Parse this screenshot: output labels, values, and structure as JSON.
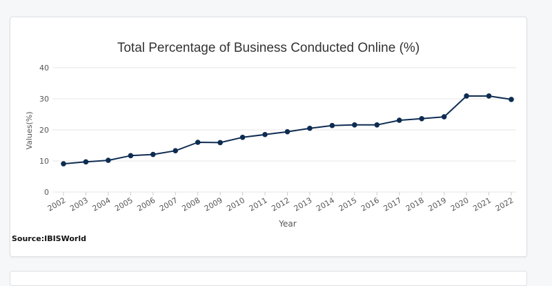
{
  "chart_data": {
    "type": "line",
    "title": "Total Percentage of Business Conducted Online (%)",
    "xlabel": "Year",
    "ylabel": "Values(%)",
    "categories": [
      "2002",
      "2003",
      "2004",
      "2005",
      "2006",
      "2007",
      "2008",
      "2009",
      "2010",
      "2011",
      "2012",
      "2013",
      "2014",
      "2015",
      "2016",
      "2017",
      "2018",
      "2019",
      "2020",
      "2021",
      "2022"
    ],
    "series": [
      {
        "values": [
          9.1,
          9.7,
          10.2,
          11.7,
          12.1,
          13.3,
          16.0,
          15.9,
          17.6,
          18.5,
          19.4,
          20.5,
          21.4,
          21.6,
          21.6,
          23.1,
          23.6,
          24.2,
          30.9,
          30.9,
          29.8
        ]
      }
    ],
    "ylim": [
      0,
      40
    ],
    "yticks": [
      "0",
      "10",
      "20",
      "30",
      "40"
    ],
    "grid": true,
    "legend": "none"
  },
  "colors": {
    "line": "#0e2c52",
    "grid": "#e6e6e6",
    "axis_text": "#555555",
    "title": "#333333"
  },
  "source": "Source:IBISWorld"
}
